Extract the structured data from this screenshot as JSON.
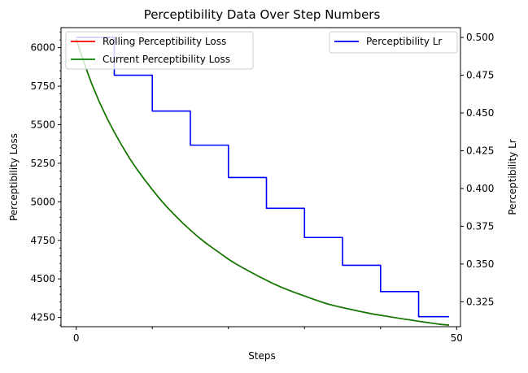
{
  "chart_data": {
    "type": "line",
    "title": "Perceptibility Data Over Step Numbers",
    "xlabel": "Steps",
    "ylabel_left": "Perceptibility Loss",
    "ylabel_right": "Perceptibility Lr",
    "xlim": [
      -2,
      50.5
    ],
    "ylim_left": [
      4190,
      6130
    ],
    "ylim_right": [
      0.3085,
      0.5065
    ],
    "x_ticks": [
      0,
      50
    ],
    "x_minor_ticks": [
      10,
      20,
      30,
      40
    ],
    "y_left_ticks": [
      4250,
      4500,
      4750,
      5000,
      5250,
      5500,
      5750,
      6000
    ],
    "y_right_ticks": [
      0.325,
      0.35,
      0.375,
      0.4,
      0.425,
      0.45,
      0.475,
      0.5
    ],
    "legend_left": "top-left",
    "legend_right": "top-right",
    "grid": false,
    "x": [
      0,
      1,
      2,
      3,
      4,
      5,
      6,
      7,
      8,
      9,
      10,
      11,
      12,
      13,
      14,
      15,
      16,
      17,
      18,
      19,
      20,
      21,
      22,
      23,
      24,
      25,
      26,
      27,
      28,
      29,
      30,
      31,
      32,
      33,
      34,
      35,
      36,
      37,
      38,
      39,
      40,
      41,
      42,
      43,
      44,
      45,
      46,
      47,
      48,
      49
    ],
    "series": [
      {
        "name": "Rolling Perceptibility Loss",
        "axis": "left",
        "color": "#ff0000",
        "values": [
          6055,
          5905,
          5770,
          5652,
          5547,
          5452,
          5365,
          5283,
          5210,
          5143,
          5079,
          5018,
          4962,
          4911,
          4862,
          4817,
          4773,
          4734,
          4698,
          4663,
          4628,
          4597,
          4569,
          4542,
          4516,
          4491,
          4467,
          4445,
          4425,
          4407,
          4389,
          4371,
          4354,
          4338,
          4325,
          4314,
          4303,
          4292,
          4282,
          4272,
          4264,
          4256,
          4248,
          4240,
          4233,
          4225,
          4218,
          4211,
          4204,
          4200
        ]
      },
      {
        "name": "Current Perceptibility Loss",
        "axis": "left",
        "color": "#008000",
        "values": [
          6055,
          5905,
          5770,
          5652,
          5547,
          5452,
          5365,
          5283,
          5210,
          5143,
          5079,
          5018,
          4962,
          4911,
          4862,
          4817,
          4773,
          4734,
          4698,
          4663,
          4628,
          4597,
          4569,
          4542,
          4516,
          4491,
          4467,
          4445,
          4425,
          4407,
          4389,
          4371,
          4354,
          4338,
          4325,
          4314,
          4303,
          4292,
          4282,
          4272,
          4264,
          4256,
          4248,
          4240,
          4233,
          4225,
          4218,
          4211,
          4204,
          4200
        ]
      },
      {
        "name": "Perceptibility Lr",
        "axis": "right",
        "color": "#0000ff",
        "values": [
          0.5,
          0.5,
          0.5,
          0.5,
          0.5,
          0.475,
          0.475,
          0.475,
          0.475,
          0.475,
          0.45125,
          0.45125,
          0.45125,
          0.45125,
          0.45125,
          0.42869,
          0.42869,
          0.42869,
          0.42869,
          0.42869,
          0.40725,
          0.40725,
          0.40725,
          0.40725,
          0.40725,
          0.38689,
          0.38689,
          0.38689,
          0.38689,
          0.38689,
          0.36755,
          0.36755,
          0.36755,
          0.36755,
          0.36755,
          0.34917,
          0.34917,
          0.34917,
          0.34917,
          0.34917,
          0.33171,
          0.33171,
          0.33171,
          0.33171,
          0.33171,
          0.31512,
          0.31512,
          0.31512,
          0.31512,
          0.31512
        ]
      }
    ]
  }
}
